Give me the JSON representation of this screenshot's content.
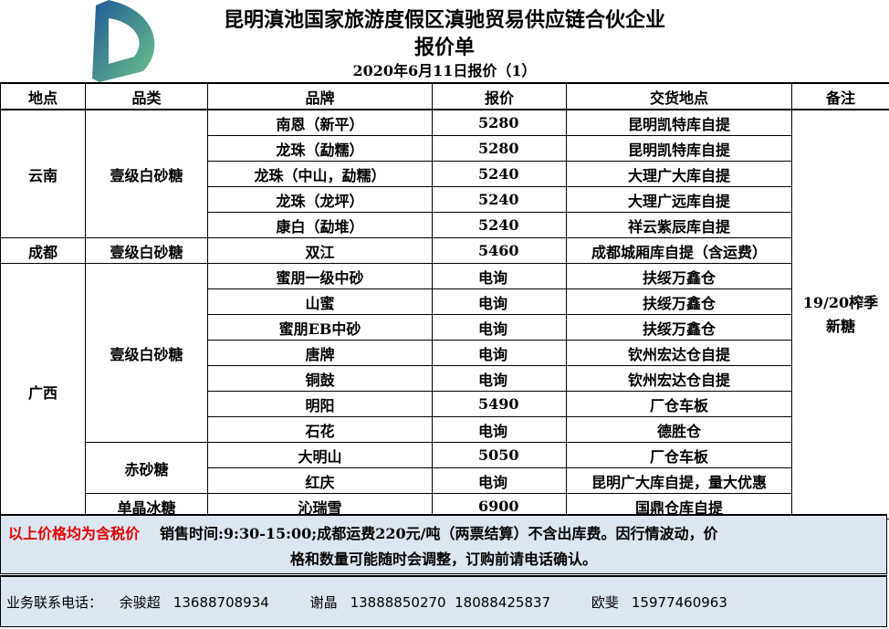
{
  "header": {
    "title": "昆明滇池国家旅游度假区滇驰贸易供应链合伙企业",
    "subtitle": "报价单",
    "date": "2020年6月11日报价（1）"
  },
  "logo": {
    "colors": [
      "#1f5a96",
      "#5fb884"
    ]
  },
  "table": {
    "columns": [
      "地点",
      "品类",
      "品牌",
      "报价",
      "交货地点",
      "备注"
    ],
    "note": "19/20榨季新糖",
    "groups": [
      {
        "location": "云南",
        "categories": [
          {
            "name": "壹级白砂糖",
            "rows": [
              {
                "brand": "南恩（新平）",
                "price": "5280",
                "delivery": "昆明凯特库自提"
              },
              {
                "brand": "龙珠（勐糯）",
                "price": "5280",
                "delivery": "昆明凯特库自提"
              },
              {
                "brand": "龙珠（中山，勐糯）",
                "price": "5240",
                "delivery": "大理广大库自提"
              },
              {
                "brand": "龙珠（龙坪）",
                "price": "5240",
                "delivery": "大理广远库自提"
              },
              {
                "brand": "康白（勐堆）",
                "price": "5240",
                "delivery": "祥云紫辰库自提"
              }
            ]
          }
        ]
      },
      {
        "location": "成都",
        "categories": [
          {
            "name": "壹级白砂糖",
            "rows": [
              {
                "brand": "双江",
                "price": "5460",
                "delivery": "成都城厢库自提（含运费）"
              }
            ]
          }
        ]
      },
      {
        "location": "广西",
        "categories": [
          {
            "name": "壹级白砂糖",
            "rows": [
              {
                "brand": "蜜朋一级中砂",
                "price": "电询",
                "delivery": "扶绥万鑫仓"
              },
              {
                "brand": "山蜜",
                "price": "电询",
                "delivery": "扶绥万鑫仓"
              },
              {
                "brand": "蜜朋EB中砂",
                "price": "电询",
                "delivery": "扶绥万鑫仓"
              },
              {
                "brand": "唐牌",
                "price": "电询",
                "delivery": "钦州宏达仓自提"
              },
              {
                "brand": "铜鼓",
                "price": "电询",
                "delivery": "钦州宏达仓自提"
              },
              {
                "brand": "明阳",
                "price": "5490",
                "delivery": "厂仓车板"
              },
              {
                "brand": "石花",
                "price": "电询",
                "delivery": "德胜仓"
              }
            ]
          },
          {
            "name": "赤砂糖",
            "rows": [
              {
                "brand": "大明山",
                "price": "5050",
                "delivery": "厂仓车板"
              },
              {
                "brand": "红庆",
                "price": "电询",
                "delivery": "昆明广大库自提，量大优惠"
              }
            ]
          },
          {
            "name": "单晶冰糖",
            "rows": [
              {
                "brand": "沁瑞雪",
                "price": "6900",
                "delivery": "国鼎仓库自提"
              }
            ]
          }
        ]
      }
    ]
  },
  "footer": {
    "tax_note": "以上价格均为含税价",
    "line1": "销售时间:9:30-15:00;成都运费220元/吨（两票结算）不含出库费。因行情波动，价",
    "line2": "格和数量可能随时会调整，订购前请电话确认。"
  },
  "contact": {
    "label": "业务联系电话：",
    "people": [
      {
        "name": "余骏超",
        "phones": "13688708934"
      },
      {
        "name": "谢晶",
        "phones": "13888850270  18088425837"
      },
      {
        "name": "欧斐",
        "phones": "15977460963"
      }
    ]
  }
}
